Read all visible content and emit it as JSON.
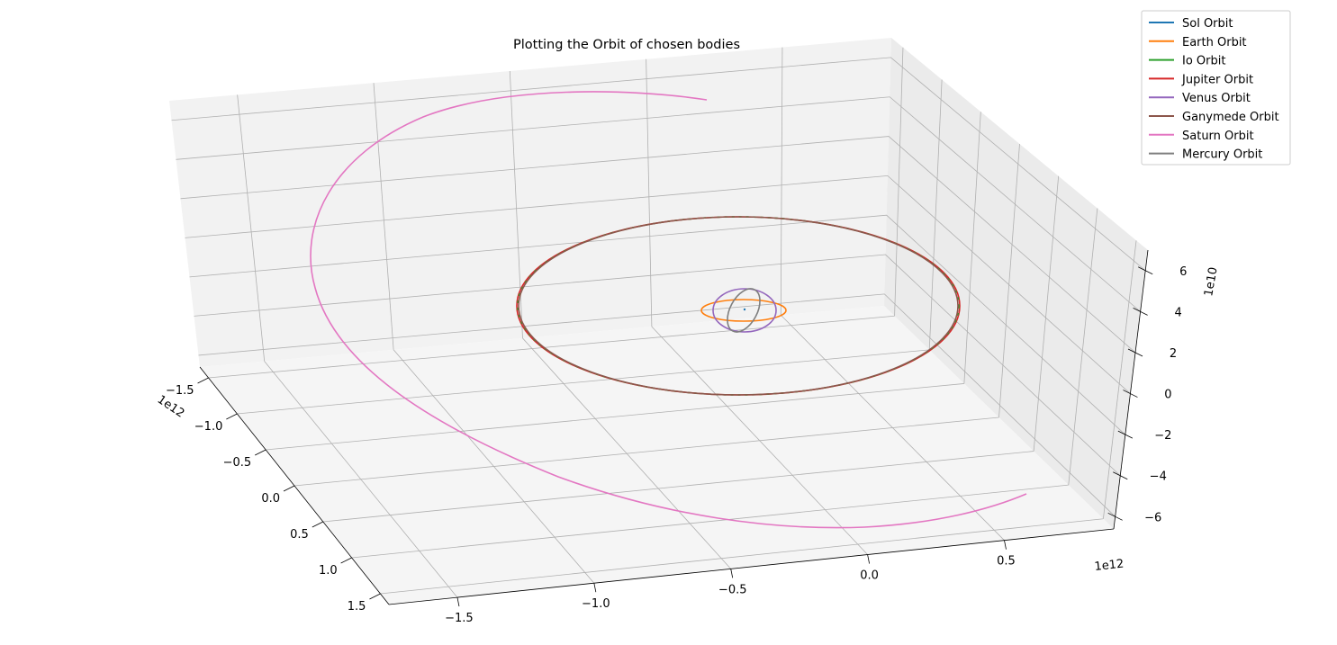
{
  "chart_data": {
    "type": "line3d",
    "title": "Plotting the Orbit of chosen bodies",
    "legend_placement": "top-right",
    "grid": true,
    "axes": {
      "x": {
        "ticks": [
          "−1.5",
          "−1.0",
          "−0.5",
          "0.0",
          "0.5",
          "1.0",
          "1.5"
        ],
        "values": [
          -1.5,
          -1.0,
          -0.5,
          0.0,
          0.5,
          1.0,
          1.5
        ],
        "offset_label": "1e12"
      },
      "y": {
        "ticks": [
          "−1.5",
          "−1.0",
          "−0.5",
          "0.0",
          "0.5"
        ],
        "values": [
          -1.5,
          -1.0,
          -0.5,
          0.0,
          0.5
        ],
        "offset_label": "1e12"
      },
      "z": {
        "ticks": [
          "−6",
          "−4",
          "−2",
          "0",
          "2",
          "4",
          "6"
        ],
        "values": [
          -6,
          -4,
          -2,
          0,
          2,
          4,
          6
        ],
        "offset_label": "1e10"
      }
    },
    "series": [
      {
        "name": "Sol Orbit",
        "color": "#1f77b4"
      },
      {
        "name": "Earth Orbit",
        "color": "#ff7f0e"
      },
      {
        "name": "Io Orbit",
        "color": "#2ca02c"
      },
      {
        "name": "Jupiter Orbit",
        "color": "#d62728"
      },
      {
        "name": "Venus Orbit",
        "color": "#9467bd"
      },
      {
        "name": "Ganymede Orbit",
        "color": "#8c564b"
      },
      {
        "name": "Saturn Orbit",
        "color": "#e377c2"
      },
      {
        "name": "Mercury Orbit",
        "color": "#7f7f7f"
      }
    ]
  }
}
